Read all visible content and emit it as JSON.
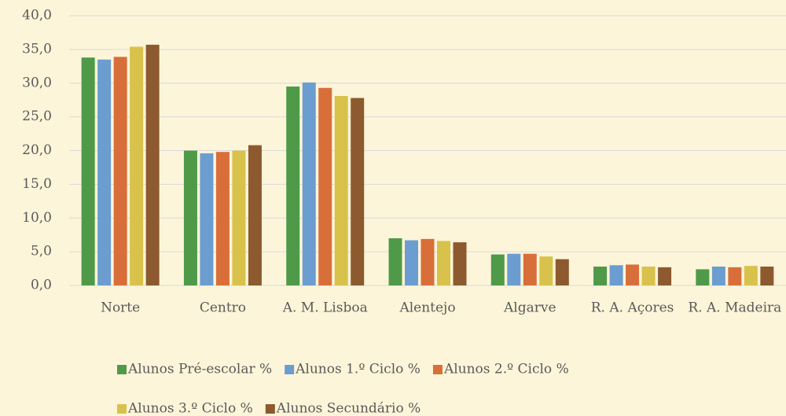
{
  "chart_data": {
    "type": "bar",
    "categories": [
      "Norte",
      "Centro",
      "A. M. Lisboa",
      "Alentejo",
      "Algarve",
      "R. A. Açores",
      "R. A. Madeira"
    ],
    "series": [
      {
        "name": "Alunos Pré-escolar %",
        "color": "#4f9a48",
        "values": [
          33.8,
          20.0,
          29.5,
          7.0,
          4.6,
          2.8,
          2.4
        ]
      },
      {
        "name": "Alunos 1.º Ciclo %",
        "color": "#6b9dd0",
        "values": [
          33.5,
          19.6,
          30.1,
          6.7,
          4.7,
          3.0,
          2.8
        ]
      },
      {
        "name": "Alunos 2.º Ciclo %",
        "color": "#d86f3a",
        "values": [
          33.9,
          19.8,
          29.3,
          6.9,
          4.7,
          3.1,
          2.7
        ]
      },
      {
        "name": "Alunos 3.º Ciclo %",
        "color": "#d8c24b",
        "values": [
          35.4,
          20.0,
          28.1,
          6.6,
          4.3,
          2.8,
          2.9
        ]
      },
      {
        "name": "Alunos Secundário %",
        "color": "#8c5a2e",
        "values": [
          35.7,
          20.8,
          27.8,
          6.4,
          3.9,
          2.7,
          2.8
        ]
      }
    ],
    "ylim": [
      0,
      40
    ],
    "yticks": [
      {
        "value": 0,
        "label": "0,0"
      },
      {
        "value": 5,
        "label": "5,0"
      },
      {
        "value": 10,
        "label": "10,0"
      },
      {
        "value": 15,
        "label": "15,0"
      },
      {
        "value": 20,
        "label": "20,0"
      },
      {
        "value": 25,
        "label": "25,0"
      },
      {
        "value": 30,
        "label": "30,0"
      },
      {
        "value": 35,
        "label": "35,0"
      },
      {
        "value": 40,
        "label": "40,0"
      }
    ],
    "grid": true,
    "legend": "bottom"
  }
}
